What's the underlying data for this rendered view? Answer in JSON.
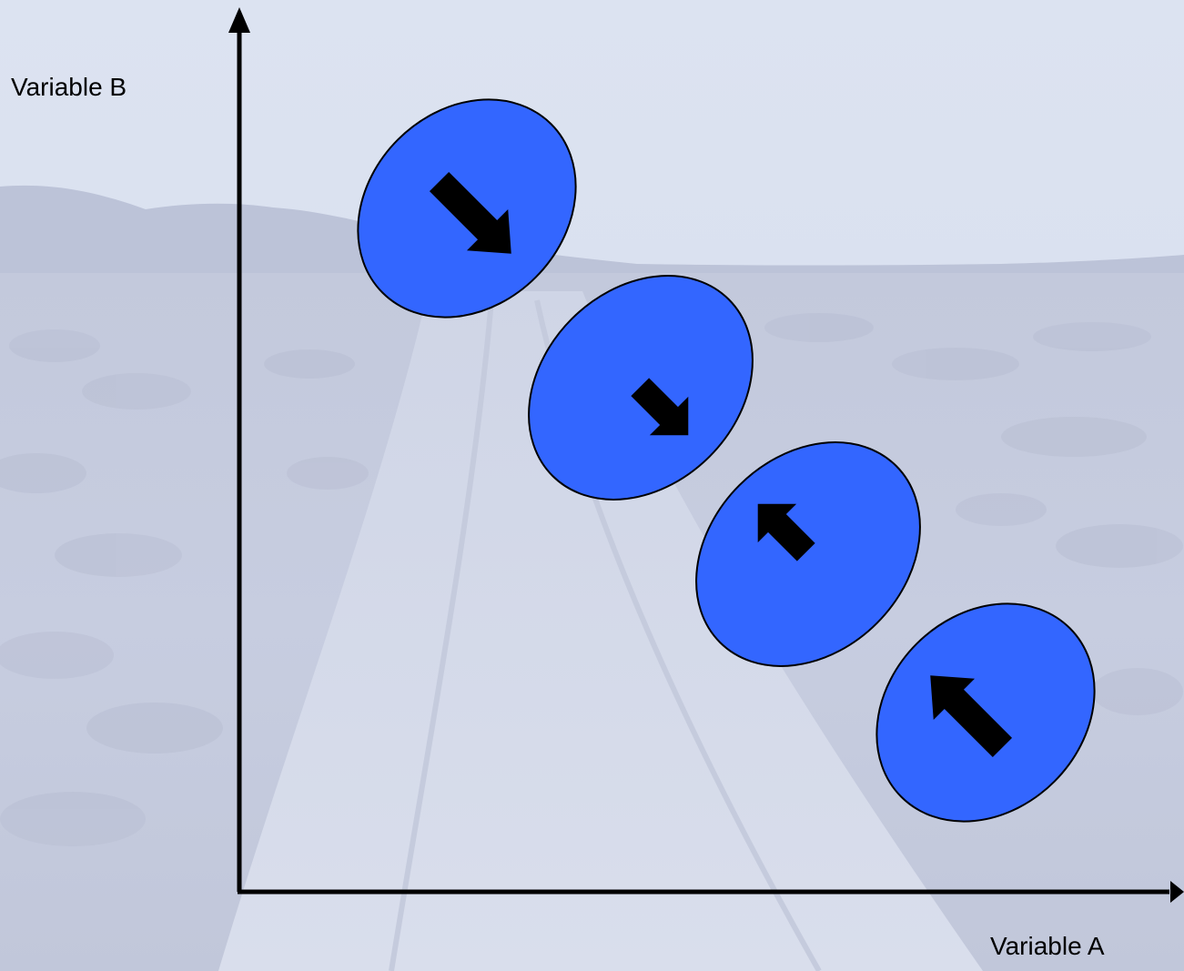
{
  "diagram": {
    "y_axis_label": "Variable B",
    "x_axis_label": "Variable A",
    "ellipse_color": "#3366ff",
    "arrow_color": "#000000",
    "axis_color": "#000000",
    "background": "faded photograph of a dirt road through sagebrush desert with hills under an overcast sky",
    "ellipses": [
      {
        "id": "ellipse-1",
        "arrow_direction": "down-right",
        "arrow_size": "large"
      },
      {
        "id": "ellipse-2",
        "arrow_direction": "down-right",
        "arrow_size": "small"
      },
      {
        "id": "ellipse-3",
        "arrow_direction": "up-left",
        "arrow_size": "small"
      },
      {
        "id": "ellipse-4",
        "arrow_direction": "up-left",
        "arrow_size": "large"
      }
    ]
  }
}
